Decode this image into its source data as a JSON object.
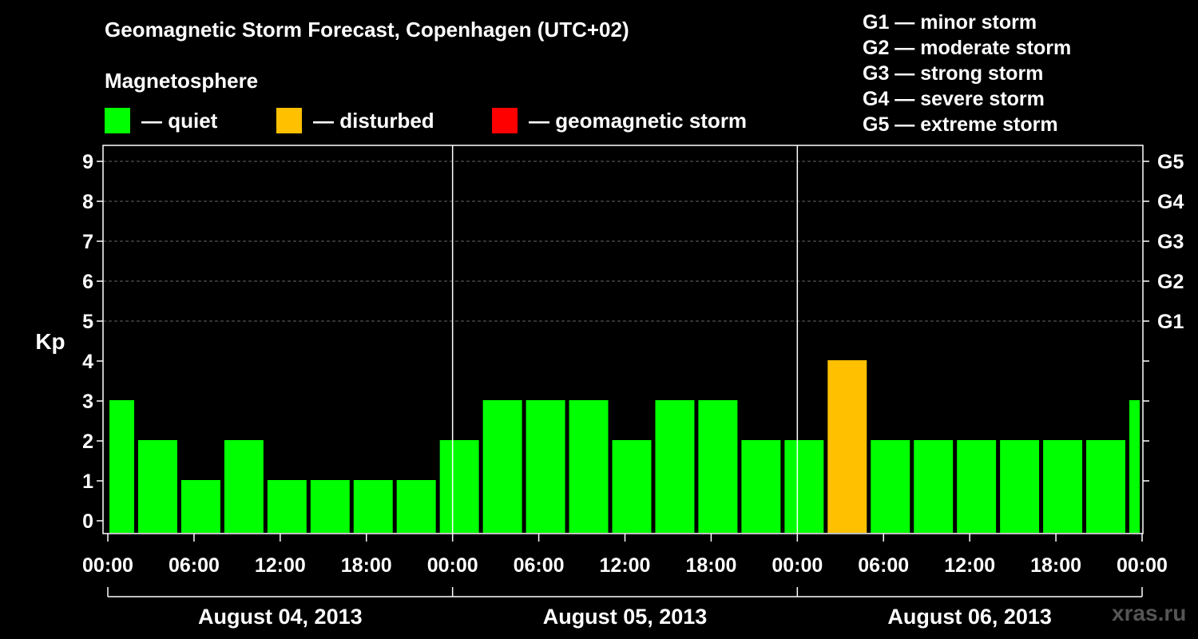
{
  "header": {
    "title": "Geomagnetic Storm Forecast, Copenhagen (UTC+02)",
    "subtitle": "Magnetosphere",
    "legend": [
      {
        "label": "— quiet",
        "color": "#00ff00"
      },
      {
        "label": "— disturbed",
        "color": "#ffc000"
      },
      {
        "label": "— geomagnetic storm",
        "color": "#ff0000"
      }
    ]
  },
  "storm_scale": [
    "G1 — minor storm",
    "G2 — moderate storm",
    "G3 — strong storm",
    "G4 — severe storm",
    "G5 — extreme storm"
  ],
  "watermark": "xras.ru",
  "chart_data": {
    "type": "bar",
    "ylabel": "Kp",
    "ylim": [
      0,
      9
    ],
    "y_ticks": [
      "0",
      "1",
      "2",
      "3",
      "4",
      "5",
      "6",
      "7",
      "8",
      "9"
    ],
    "right_ticks": [
      {
        "kp": 5,
        "label": "G1"
      },
      {
        "kp": 6,
        "label": "G2"
      },
      {
        "kp": 7,
        "label": "G3"
      },
      {
        "kp": 8,
        "label": "G4"
      },
      {
        "kp": 9,
        "label": "G5"
      }
    ],
    "grid": "dashed horizontal at Kp 5-9",
    "x_tick_labels": [
      "00:00",
      "06:00",
      "12:00",
      "18:00",
      "00:00",
      "06:00",
      "12:00",
      "18:00",
      "00:00",
      "06:00",
      "12:00",
      "18:00",
      "00:00"
    ],
    "days": [
      "August 04, 2013",
      "August 05, 2013",
      "August 06, 2013"
    ],
    "colors": {
      "quiet": "#00ff00",
      "disturbed": "#ffc000",
      "storm": "#ff0000"
    },
    "bars": [
      {
        "start_hour": 0,
        "end_hour": 2,
        "kp": 3,
        "status": "quiet"
      },
      {
        "start_hour": 2,
        "end_hour": 5,
        "kp": 2,
        "status": "quiet"
      },
      {
        "start_hour": 5,
        "end_hour": 8,
        "kp": 1,
        "status": "quiet"
      },
      {
        "start_hour": 8,
        "end_hour": 11,
        "kp": 2,
        "status": "quiet"
      },
      {
        "start_hour": 11,
        "end_hour": 14,
        "kp": 1,
        "status": "quiet"
      },
      {
        "start_hour": 14,
        "end_hour": 17,
        "kp": 1,
        "status": "quiet"
      },
      {
        "start_hour": 17,
        "end_hour": 20,
        "kp": 1,
        "status": "quiet"
      },
      {
        "start_hour": 20,
        "end_hour": 23,
        "kp": 1,
        "status": "quiet"
      },
      {
        "start_hour": 23,
        "end_hour": 26,
        "kp": 2,
        "status": "quiet"
      },
      {
        "start_hour": 26,
        "end_hour": 29,
        "kp": 3,
        "status": "quiet"
      },
      {
        "start_hour": 29,
        "end_hour": 32,
        "kp": 3,
        "status": "quiet"
      },
      {
        "start_hour": 32,
        "end_hour": 35,
        "kp": 3,
        "status": "quiet"
      },
      {
        "start_hour": 35,
        "end_hour": 38,
        "kp": 2,
        "status": "quiet"
      },
      {
        "start_hour": 38,
        "end_hour": 41,
        "kp": 3,
        "status": "quiet"
      },
      {
        "start_hour": 41,
        "end_hour": 44,
        "kp": 3,
        "status": "quiet"
      },
      {
        "start_hour": 44,
        "end_hour": 47,
        "kp": 2,
        "status": "quiet"
      },
      {
        "start_hour": 47,
        "end_hour": 50,
        "kp": 2,
        "status": "quiet"
      },
      {
        "start_hour": 50,
        "end_hour": 53,
        "kp": 4,
        "status": "disturbed"
      },
      {
        "start_hour": 53,
        "end_hour": 56,
        "kp": 2,
        "status": "quiet"
      },
      {
        "start_hour": 56,
        "end_hour": 59,
        "kp": 2,
        "status": "quiet"
      },
      {
        "start_hour": 59,
        "end_hour": 62,
        "kp": 2,
        "status": "quiet"
      },
      {
        "start_hour": 62,
        "end_hour": 65,
        "kp": 2,
        "status": "quiet"
      },
      {
        "start_hour": 65,
        "end_hour": 68,
        "kp": 2,
        "status": "quiet"
      },
      {
        "start_hour": 68,
        "end_hour": 71,
        "kp": 2,
        "status": "quiet"
      },
      {
        "start_hour": 71,
        "end_hour": 72,
        "kp": 3,
        "status": "quiet"
      }
    ]
  }
}
